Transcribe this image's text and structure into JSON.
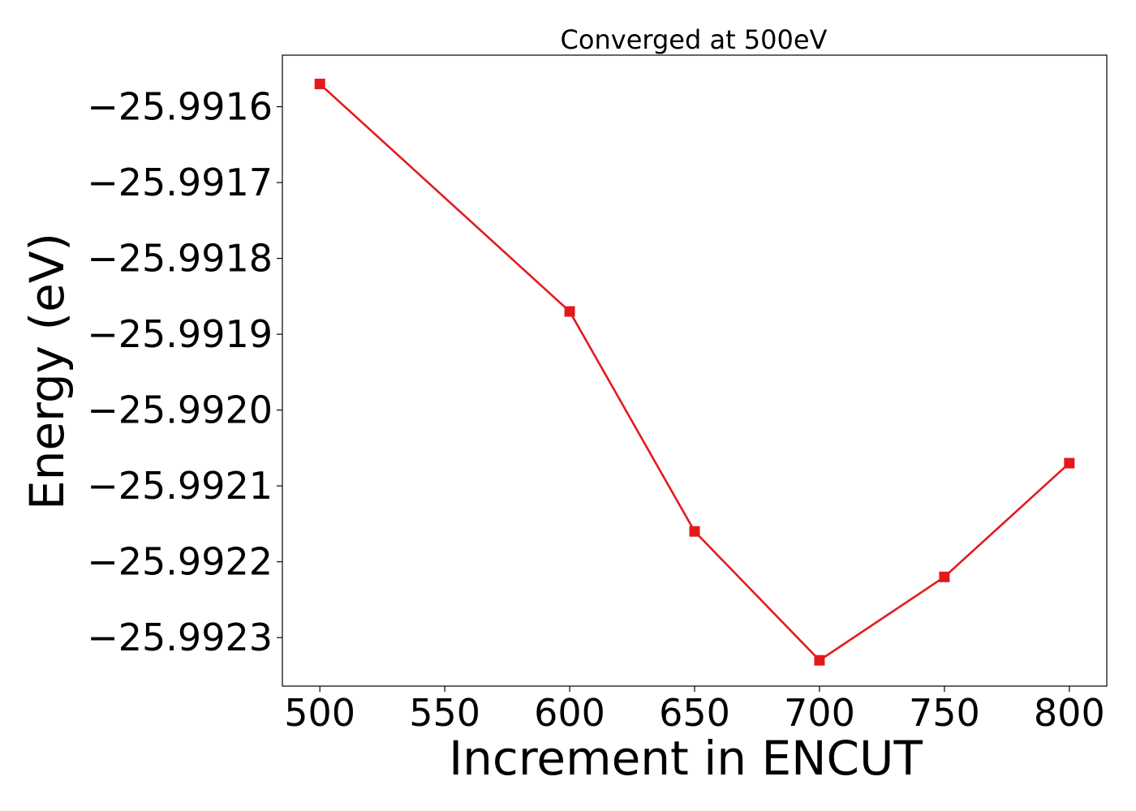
{
  "chart_data": {
    "type": "line",
    "title": "Converged at 500eV",
    "xlabel": "Increment in ENCUT",
    "ylabel": "Energy (eV)",
    "x": [
      500,
      600,
      650,
      700,
      750,
      800
    ],
    "series": [
      {
        "values": [
          -25.99157,
          -25.99187,
          -25.99216,
          -25.99233,
          -25.99222,
          -25.99207
        ],
        "color": "#e31a1c",
        "marker": "square"
      }
    ],
    "xlim": [
      485,
      815
    ],
    "ylim": [
      -25.992364,
      -25.991532
    ],
    "xticks": [
      500,
      550,
      600,
      650,
      700,
      750,
      800
    ],
    "xtick_labels": [
      "500",
      "550",
      "600",
      "650",
      "700",
      "750",
      "800"
    ],
    "yticks": [
      -25.9916,
      -25.9917,
      -25.9918,
      -25.9919,
      -25.992,
      -25.9921,
      -25.9922,
      -25.9923
    ],
    "ytick_labels": [
      "−25.9916",
      "−25.9917",
      "−25.9918",
      "−25.9919",
      "−25.9920",
      "−25.9921",
      "−25.9922",
      "−25.9923"
    ],
    "grid": false,
    "legend": "none"
  }
}
